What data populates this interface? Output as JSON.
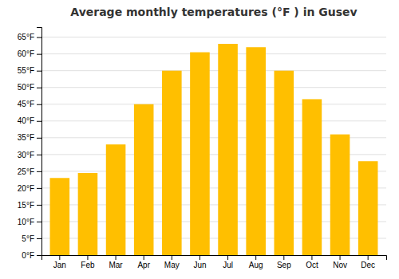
{
  "chart_data": {
    "type": "bar",
    "title": "Average monthly temperatures (°F ) in Gusev",
    "categories": [
      "Jan",
      "Feb",
      "Mar",
      "Apr",
      "May",
      "Jun",
      "Jul",
      "Aug",
      "Sep",
      "Oct",
      "Nov",
      "Dec"
    ],
    "values": [
      23,
      24.5,
      33,
      45,
      55,
      60.5,
      63,
      62,
      55,
      46.5,
      36,
      28
    ],
    "color": "#FFBF00",
    "ylim": [
      0,
      68
    ],
    "yticks": [
      {
        "value": 0,
        "label": "0°F"
      },
      {
        "value": 5,
        "label": "5°F"
      },
      {
        "value": 10,
        "label": "10°F"
      },
      {
        "value": 15,
        "label": "15°F"
      },
      {
        "value": 20,
        "label": "20°F"
      },
      {
        "value": 25,
        "label": "25°F"
      },
      {
        "value": 30,
        "label": "30°F"
      },
      {
        "value": 35,
        "label": "35°F"
      },
      {
        "value": 40,
        "label": "40°F"
      },
      {
        "value": 45,
        "label": "45°F"
      },
      {
        "value": 50,
        "label": "50°F"
      },
      {
        "value": 55,
        "label": "55°F"
      },
      {
        "value": 60,
        "label": "60°F"
      },
      {
        "value": 65,
        "label": "65°F"
      }
    ],
    "grid": true
  }
}
